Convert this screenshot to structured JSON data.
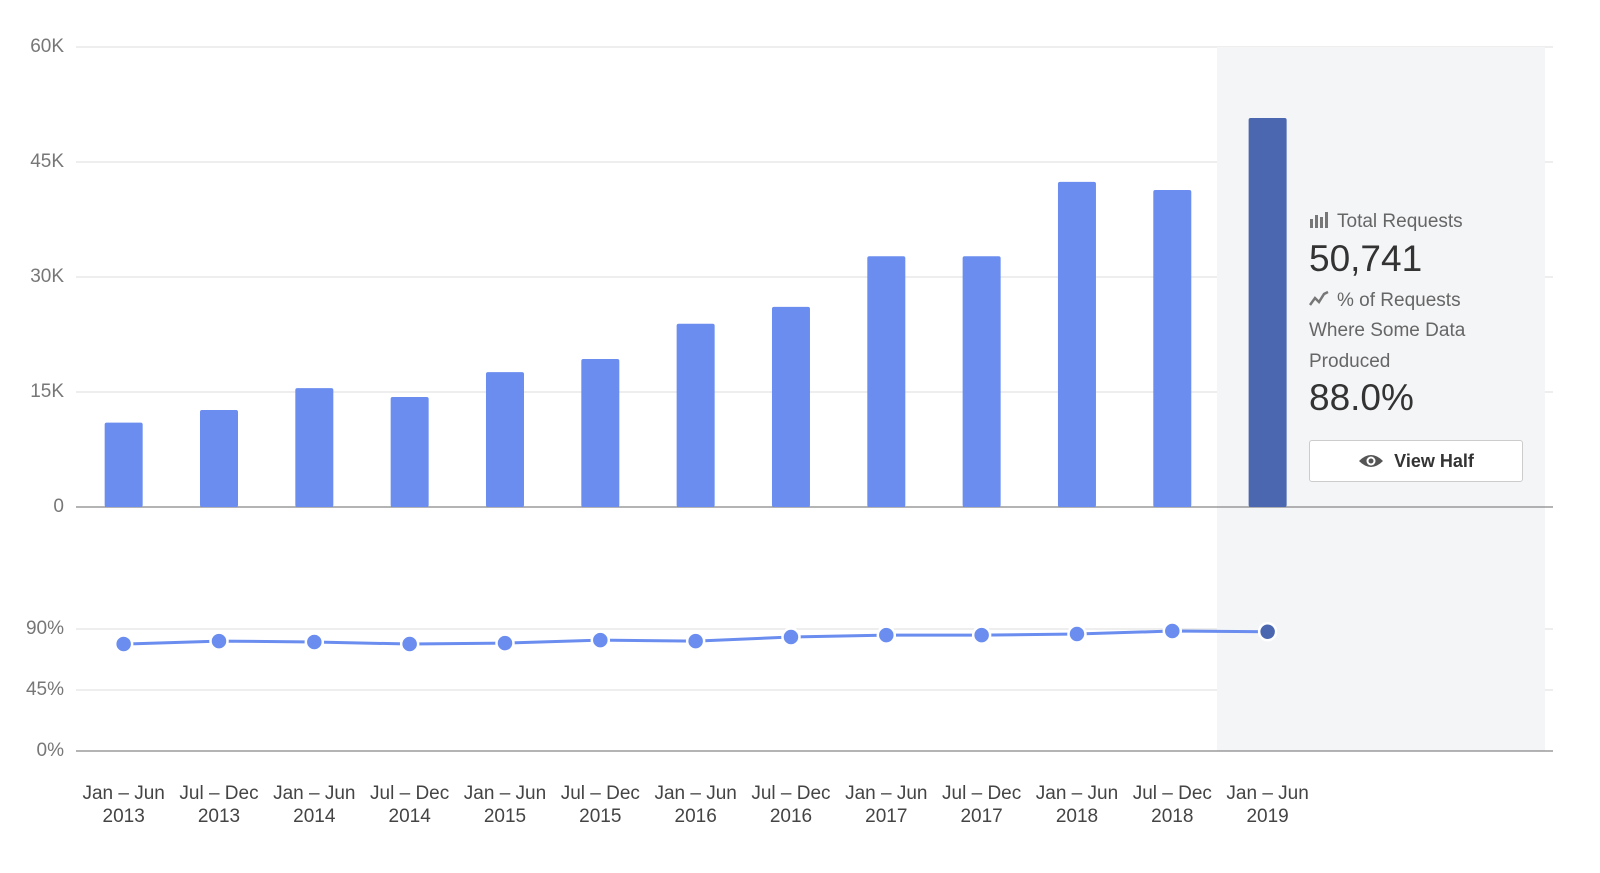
{
  "chart_data": [
    {
      "type": "bar",
      "categories": [
        "Jan – Jun\n2013",
        "Jul – Dec\n2013",
        "Jan – Jun\n2014",
        "Jul – Dec\n2014",
        "Jan – Jun\n2015",
        "Jul – Dec\n2015",
        "Jan – Jun\n2016",
        "Jul – Dec\n2016",
        "Jan – Jun\n2017",
        "Jul – Dec\n2017",
        "Jan – Jun\n2018",
        "Jul – Dec\n2018",
        "Jan – Jun\n2019"
      ],
      "series": [
        {
          "name": "Total Requests",
          "color": "#6a8def",
          "values": [
            11000,
            12650,
            15500,
            14350,
            17600,
            19300,
            23900,
            26100,
            32700,
            32700,
            42400,
            41350,
            50741
          ],
          "value_labels": [
            null,
            null,
            null,
            null,
            null,
            null,
            null,
            null,
            null,
            null,
            null,
            null,
            "50,741"
          ]
        }
      ],
      "ylim": [
        0,
        60000
      ],
      "yticks": [
        0,
        {
          "value": 15000,
          "label": "15K"
        },
        {
          "value": 30000,
          "label": "30K"
        },
        {
          "value": 45000,
          "label": "45K"
        },
        {
          "value": 60000,
          "label": "60K"
        }
      ],
      "grid": true,
      "selected_index": 12,
      "selected_color": "#4a67b0"
    },
    {
      "type": "line",
      "series": [
        {
          "name": "% of Requests Where Some Data Produced",
          "color": "#6a8def",
          "values": [
            78.9,
            81.1,
            80.4,
            78.9,
            79.6,
            81.8,
            81.1,
            84.1,
            85.5,
            85.5,
            86.3,
            88.5,
            88.0
          ],
          "value_labels": [
            null,
            null,
            null,
            null,
            null,
            null,
            null,
            null,
            null,
            null,
            null,
            null,
            "88.0%"
          ]
        }
      ],
      "ylim": [
        0,
        90
      ],
      "yticks": [
        {
          "value": 0,
          "label": "0%"
        },
        {
          "value": 45,
          "label": "45%"
        },
        {
          "value": 90,
          "label": "90%"
        }
      ],
      "grid": true,
      "selected_index": 12,
      "selected_color": "#4a67b0"
    }
  ],
  "button": {
    "label": "View Half"
  }
}
